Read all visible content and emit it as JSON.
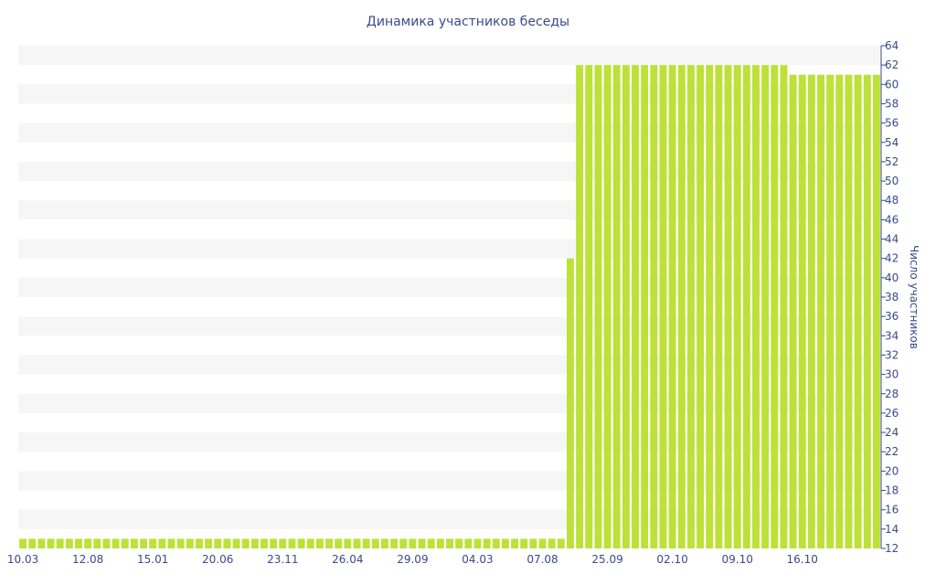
{
  "chart_data": {
    "type": "bar",
    "title": "Динамика участников беседы",
    "xlabel": "",
    "ylabel": "Число участников",
    "ylim": [
      12,
      64
    ],
    "ytick_step": 2,
    "y_axis_side": "right",
    "grid": "alternating horizontal bands",
    "x_tick_labels": [
      "10.03",
      "12.08",
      "15.01",
      "20.06",
      "23.11",
      "26.04",
      "29.09",
      "04.03",
      "07.08",
      "25.09",
      "02.10",
      "09.10",
      "16.10"
    ],
    "x_tick_positions": [
      0,
      7,
      14,
      21,
      28,
      35,
      42,
      49,
      56,
      63,
      70,
      77,
      84
    ],
    "values": [
      13,
      13,
      13,
      13,
      13,
      13,
      13,
      13,
      13,
      13,
      13,
      13,
      13,
      13,
      13,
      13,
      13,
      13,
      13,
      13,
      13,
      13,
      13,
      13,
      13,
      13,
      13,
      13,
      13,
      13,
      13,
      13,
      13,
      13,
      13,
      13,
      13,
      13,
      13,
      13,
      13,
      13,
      13,
      13,
      13,
      13,
      13,
      13,
      13,
      13,
      13,
      13,
      13,
      13,
      13,
      13,
      13,
      13,
      13,
      42,
      62,
      62,
      62,
      62,
      62,
      62,
      62,
      62,
      62,
      62,
      62,
      62,
      62,
      62,
      62,
      62,
      62,
      62,
      62,
      62,
      62,
      62,
      62,
      61,
      61,
      61,
      61,
      61,
      61,
      61,
      61,
      61,
      61
    ],
    "bar_color": "#bde138",
    "band_color": "#f6f6f6",
    "text_color": "#3a4a8c"
  }
}
